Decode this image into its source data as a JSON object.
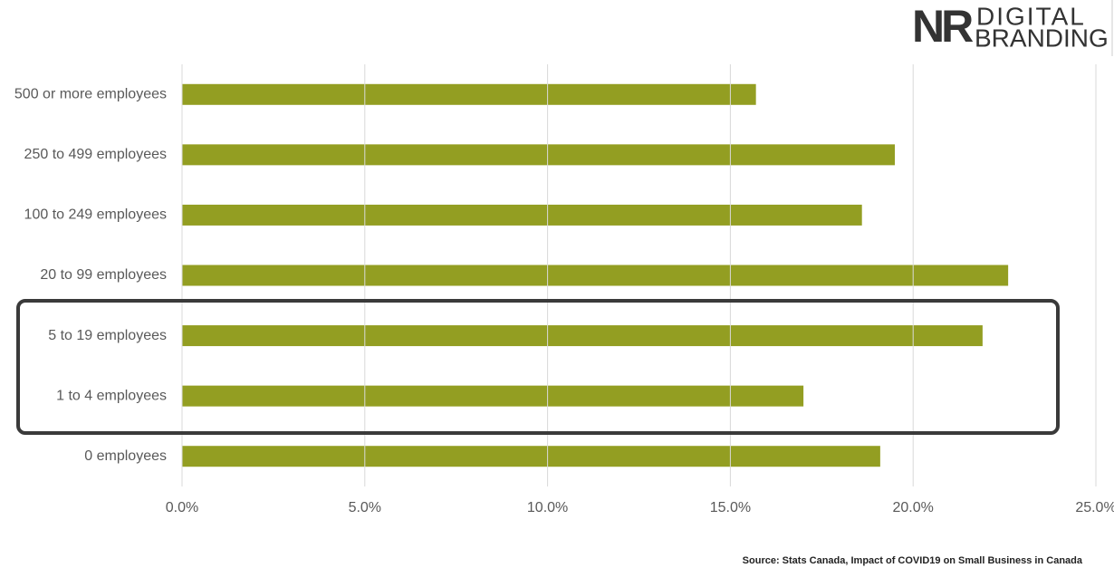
{
  "logo": {
    "mark": "NR",
    "line1": "DIGITAL",
    "line2": "BRANDING"
  },
  "source": "Source: Stats Canada, Impact of COVID19 on Small Business in Canada",
  "chart_data": {
    "type": "bar",
    "orientation": "horizontal",
    "categories": [
      "500 or more employees",
      "250 to 499 employees",
      "100 to 249 employees",
      "20 to 99 employees",
      "5 to 19 employees",
      "1 to 4 employees",
      "0 employees"
    ],
    "values": [
      15.7,
      19.5,
      18.6,
      22.6,
      21.9,
      17.0,
      19.1
    ],
    "color": "#939e22",
    "xlim": [
      0,
      25
    ],
    "xticks": [
      {
        "value": 0,
        "label": "0.0%"
      },
      {
        "value": 5,
        "label": "5.0%"
      },
      {
        "value": 10,
        "label": "10.0%"
      },
      {
        "value": 15,
        "label": "15.0%"
      },
      {
        "value": 20,
        "label": "20.0%"
      },
      {
        "value": 25,
        "label": "25.0%"
      }
    ],
    "grid": true
  }
}
